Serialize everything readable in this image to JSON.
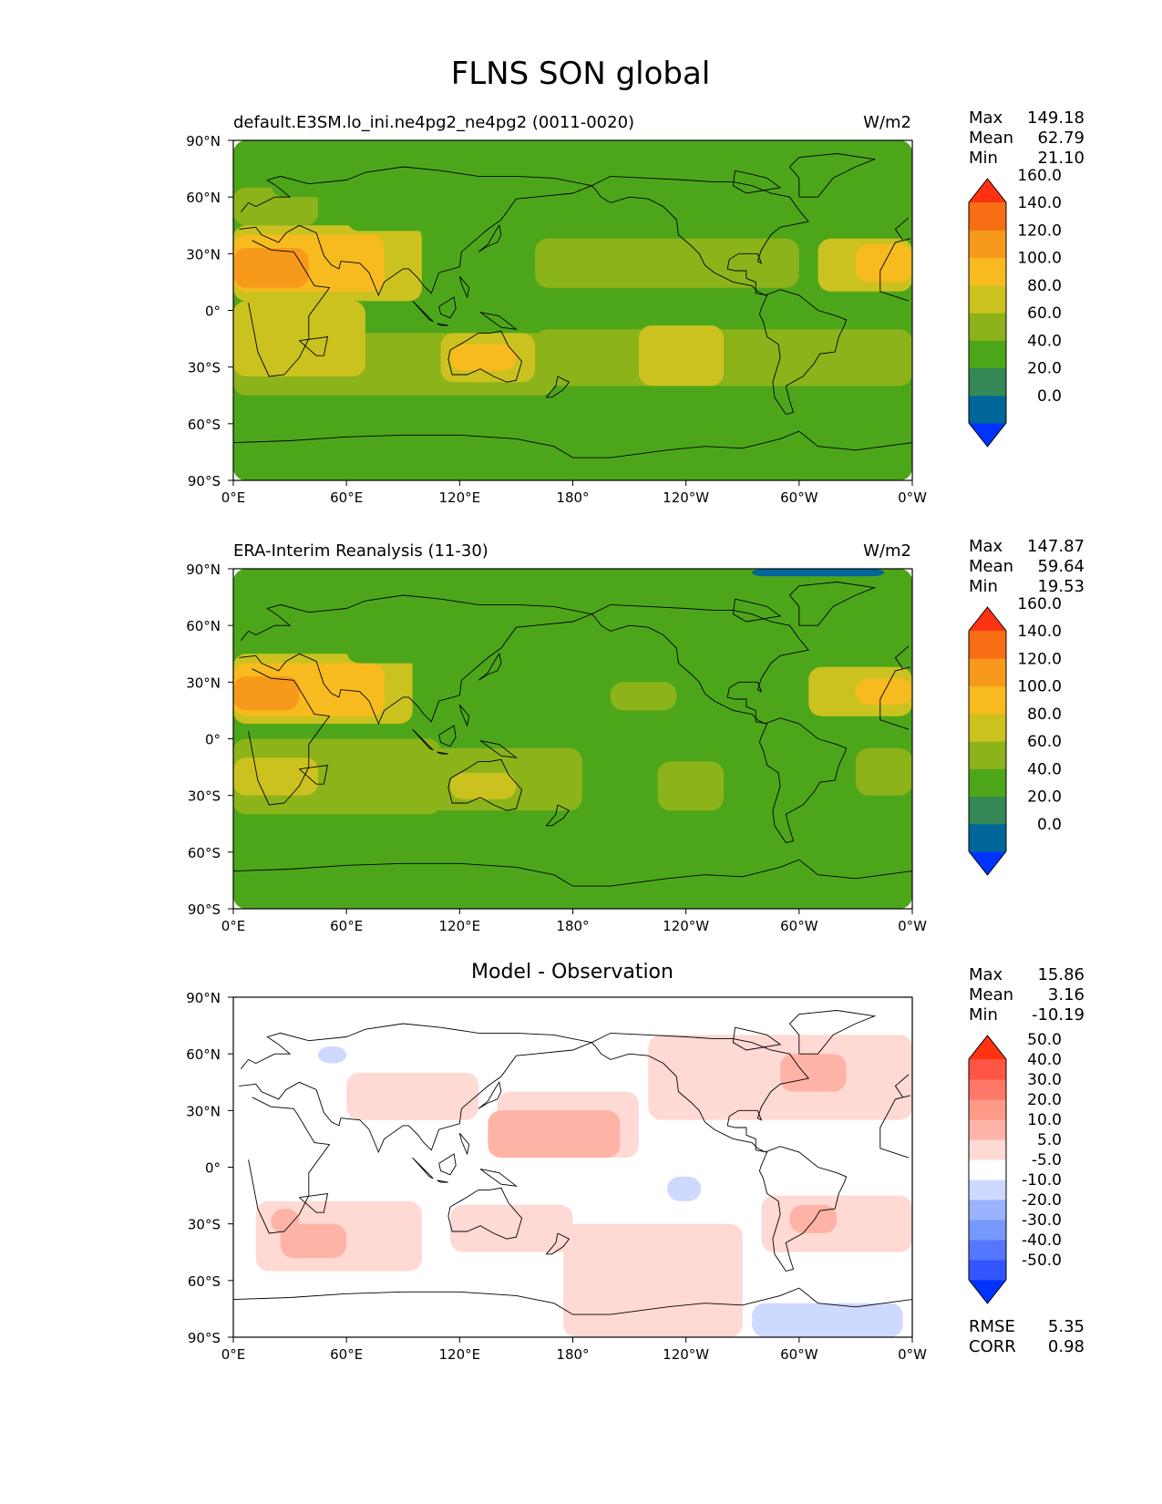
{
  "title": "FLNS SON global",
  "axes": {
    "lat_ticks": [
      "90°N",
      "60°N",
      "30°N",
      "0°",
      "30°S",
      "60°S",
      "90°S"
    ],
    "lon_ticks": [
      "0°E",
      "60°E",
      "120°E",
      "180°",
      "120°W",
      "60°W",
      "0°W"
    ]
  },
  "panels": [
    {
      "label": "default.E3SM.lo_ini.ne4pg2_ne4pg2 (0011-0020)",
      "units": "W/m2",
      "stats": {
        "max_label": "Max",
        "max": "149.18",
        "mean_label": "Mean",
        "mean": "62.79",
        "min_label": "Min",
        "min": "21.10"
      },
      "colorbar": {
        "colors": [
          "#0033ff",
          "#006699",
          "#338855",
          "#4da61a",
          "#8db31a",
          "#ccc21f",
          "#f7bb1f",
          "#f7991a",
          "#f76e14",
          "#ff3312"
        ],
        "labels": [
          "0.0",
          "20.0",
          "40.0",
          "60.0",
          "80.0",
          "100.0",
          "120.0",
          "140.0",
          "160.0"
        ]
      }
    },
    {
      "label": "ERA-Interim Reanalysis (11-30)",
      "units": "W/m2",
      "stats": {
        "max_label": "Max",
        "max": "147.87",
        "mean_label": "Mean",
        "mean": "59.64",
        "min_label": "Min",
        "min": "19.53"
      },
      "colorbar": {
        "colors": [
          "#0033ff",
          "#006699",
          "#338855",
          "#4da61a",
          "#8db31a",
          "#ccc21f",
          "#f7bb1f",
          "#f7991a",
          "#f76e14",
          "#ff3312"
        ],
        "labels": [
          "0.0",
          "20.0",
          "40.0",
          "60.0",
          "80.0",
          "100.0",
          "120.0",
          "140.0",
          "160.0"
        ]
      }
    },
    {
      "label": "Model - Observation",
      "units": "",
      "stats": {
        "max_label": "Max",
        "max": "15.86",
        "mean_label": "Mean",
        "mean": "3.16",
        "min_label": "Min",
        "min": "-10.19"
      },
      "colorbar": {
        "colors": [
          "#0033ff",
          "#3355ff",
          "#5577ff",
          "#7799ff",
          "#99b3ff",
          "#cdd9ff",
          "#ffffff",
          "#ffd9d3",
          "#ffb3a6",
          "#ff9988",
          "#ff7766",
          "#ff5544",
          "#ff3311"
        ],
        "labels": [
          "-50.0",
          "-40.0",
          "-30.0",
          "-20.0",
          "-10.0",
          "-5.0",
          "5.0",
          "10.0",
          "20.0",
          "30.0",
          "40.0",
          "50.0"
        ]
      },
      "metrics": {
        "rmse_label": "RMSE",
        "rmse": "5.35",
        "corr_label": "CORR",
        "corr": "0.98"
      }
    }
  ],
  "chart_data": [
    {
      "type": "heatmap",
      "title": "default.E3SM.lo_ini.ne4pg2_ne4pg2 (0011-0020)",
      "units": "W/m2",
      "xlim": [
        0,
        360
      ],
      "ylim": [
        -90,
        90
      ],
      "levels": [
        0,
        20,
        40,
        60,
        80,
        100,
        120,
        140,
        160
      ],
      "fields": [
        {
          "lon": [
            0,
            360
          ],
          "lat": [
            -90,
            90
          ],
          "value": 50
        },
        {
          "lon": [
            0,
            360
          ],
          "lat": [
            -65,
            -40
          ],
          "value": 55
        },
        {
          "lon": [
            0,
            20
          ],
          "lat": [
            -60,
            -40
          ],
          "value": 45
        },
        {
          "lon": [
            0,
            360
          ],
          "lat": [
            -90,
            -68
          ],
          "value": 45
        },
        {
          "lon": [
            0,
            170
          ],
          "lat": [
            -45,
            -12
          ],
          "value": 70
        },
        {
          "lon": [
            160,
            360
          ],
          "lat": [
            -40,
            -10
          ],
          "value": 70
        },
        {
          "lon": [
            0,
            70
          ],
          "lat": [
            -35,
            5
          ],
          "value": 85
        },
        {
          "lon": [
            0,
            40
          ],
          "lat": [
            -30,
            -12
          ],
          "value": 90
        },
        {
          "lon": [
            110,
            160
          ],
          "lat": [
            -38,
            -12
          ],
          "value": 85
        },
        {
          "lon": [
            115,
            150
          ],
          "lat": [
            -32,
            -18
          ],
          "value": 105
        },
        {
          "lon": [
            215,
            260
          ],
          "lat": [
            -40,
            -8
          ],
          "value": 85
        },
        {
          "lon": [
            0,
            100
          ],
          "lat": [
            5,
            45
          ],
          "value": 85
        },
        {
          "lon": [
            0,
            80
          ],
          "lat": [
            10,
            40
          ],
          "value": 110
        },
        {
          "lon": [
            0,
            40
          ],
          "lat": [
            12,
            33
          ],
          "value": 125
        },
        {
          "lon": [
            310,
            360
          ],
          "lat": [
            10,
            38
          ],
          "value": 90
        },
        {
          "lon": [
            330,
            360
          ],
          "lat": [
            15,
            35
          ],
          "value": 115
        },
        {
          "lon": [
            160,
            300
          ],
          "lat": [
            12,
            38
          ],
          "value": 70
        },
        {
          "lon": [
            0,
            45
          ],
          "lat": [
            45,
            65
          ],
          "value": 70
        },
        {
          "lon": [
            20,
            210
          ],
          "lat": [
            60,
            90
          ],
          "value": 42
        },
        {
          "lon": [
            60,
            170
          ],
          "lat": [
            42,
            62
          ],
          "value": 45
        },
        {
          "lon": [
            180,
            360
          ],
          "lat": [
            68,
            90
          ],
          "value": 42
        },
        {
          "lon": [
            245,
            285
          ],
          "lat": [
            45,
            62
          ],
          "value": 45
        },
        {
          "lon": [
            125,
            150
          ],
          "lat": [
            18,
            40
          ],
          "value": 45
        }
      ]
    },
    {
      "type": "heatmap",
      "title": "ERA-Interim Reanalysis (11-30)",
      "units": "W/m2",
      "xlim": [
        0,
        360
      ],
      "ylim": [
        -90,
        90
      ],
      "levels": [
        0,
        20,
        40,
        60,
        80,
        100,
        120,
        140,
        160
      ],
      "fields": [
        {
          "lon": [
            0,
            360
          ],
          "lat": [
            -90,
            90
          ],
          "value": 50
        },
        {
          "lon": [
            0,
            360
          ],
          "lat": [
            -65,
            -40
          ],
          "value": 45
        },
        {
          "lon": [
            0,
            360
          ],
          "lat": [
            -90,
            -68
          ],
          "value": 45
        },
        {
          "lon": [
            0,
            110
          ],
          "lat": [
            -40,
            0
          ],
          "value": 70
        },
        {
          "lon": [
            0,
            45
          ],
          "lat": [
            -30,
            -10
          ],
          "value": 85
        },
        {
          "lon": [
            100,
            185
          ],
          "lat": [
            -38,
            -5
          ],
          "value": 70
        },
        {
          "lon": [
            115,
            150
          ],
          "lat": [
            -32,
            -18
          ],
          "value": 95
        },
        {
          "lon": [
            225,
            260
          ],
          "lat": [
            -38,
            -12
          ],
          "value": 75
        },
        {
          "lon": [
            330,
            360
          ],
          "lat": [
            -30,
            -5
          ],
          "value": 75
        },
        {
          "lon": [
            0,
            95
          ],
          "lat": [
            8,
            45
          ],
          "value": 80
        },
        {
          "lon": [
            0,
            80
          ],
          "lat": [
            12,
            40
          ],
          "value": 105
        },
        {
          "lon": [
            0,
            35
          ],
          "lat": [
            15,
            33
          ],
          "value": 125
        },
        {
          "lon": [
            305,
            360
          ],
          "lat": [
            12,
            38
          ],
          "value": 85
        },
        {
          "lon": [
            330,
            360
          ],
          "lat": [
            18,
            32
          ],
          "value": 115
        },
        {
          "lon": [
            200,
            235
          ],
          "lat": [
            15,
            30
          ],
          "value": 65
        },
        {
          "lon": [
            20,
            210
          ],
          "lat": [
            55,
            90
          ],
          "value": 42
        },
        {
          "lon": [
            210,
            360
          ],
          "lat": [
            62,
            90
          ],
          "value": 42
        },
        {
          "lon": [
            275,
            345
          ],
          "lat": [
            86,
            90
          ],
          "value": 15
        },
        {
          "lon": [
            60,
            160
          ],
          "lat": [
            40,
            62
          ],
          "value": 45
        }
      ]
    },
    {
      "type": "heatmap",
      "title": "Model - Observation",
      "xlim": [
        0,
        360
      ],
      "ylim": [
        -90,
        90
      ],
      "levels": [
        -50,
        -40,
        -30,
        -20,
        -10,
        -5,
        5,
        10,
        20,
        30,
        40,
        50
      ],
      "fields": [
        {
          "lon": [
            0,
            360
          ],
          "lat": [
            -90,
            90
          ],
          "value": 0
        },
        {
          "lon": [
            12,
            100
          ],
          "lat": [
            -55,
            -18
          ],
          "value": 7
        },
        {
          "lon": [
            25,
            60
          ],
          "lat": [
            -48,
            -30
          ],
          "value": 12
        },
        {
          "lon": [
            20,
            35
          ],
          "lat": [
            -35,
            -22
          ],
          "value": 12
        },
        {
          "lon": [
            115,
            180
          ],
          "lat": [
            -45,
            -20
          ],
          "value": 7
        },
        {
          "lon": [
            175,
            270
          ],
          "lat": [
            -90,
            -30
          ],
          "value": 7
        },
        {
          "lon": [
            140,
            215
          ],
          "lat": [
            5,
            40
          ],
          "value": 7
        },
        {
          "lon": [
            135,
            205
          ],
          "lat": [
            5,
            30
          ],
          "value": 12
        },
        {
          "lon": [
            60,
            130
          ],
          "lat": [
            25,
            50
          ],
          "value": 7
        },
        {
          "lon": [
            220,
            360
          ],
          "lat": [
            25,
            70
          ],
          "value": 7
        },
        {
          "lon": [
            290,
            325
          ],
          "lat": [
            40,
            60
          ],
          "value": 12
        },
        {
          "lon": [
            280,
            360
          ],
          "lat": [
            -45,
            -15
          ],
          "value": 7
        },
        {
          "lon": [
            295,
            320
          ],
          "lat": [
            -35,
            -20
          ],
          "value": 12
        },
        {
          "lon": [
            45,
            60
          ],
          "lat": [
            55,
            64
          ],
          "value": -7
        },
        {
          "lon": [
            230,
            248
          ],
          "lat": [
            -18,
            -5
          ],
          "value": -7
        },
        {
          "lon": [
            275,
            355
          ],
          "lat": [
            -90,
            -72
          ],
          "value": -7
        }
      ]
    }
  ]
}
